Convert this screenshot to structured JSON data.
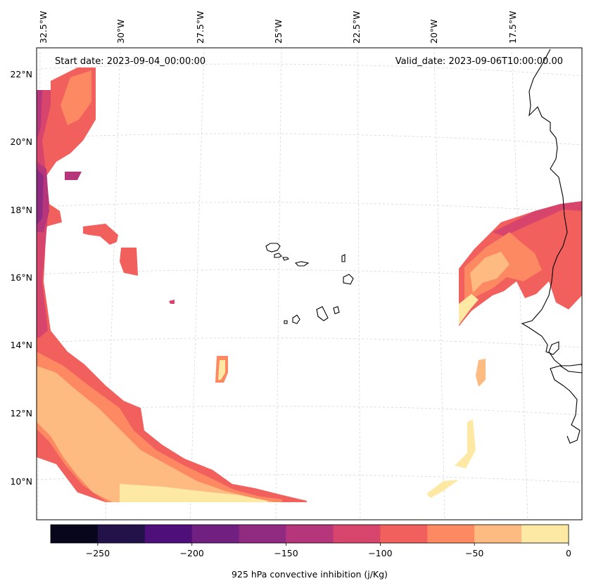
{
  "map": {
    "start_label": "Start date: 2023-09-04_00:00:00",
    "valid_label": "Valid_date: 2023-09-06T10:00:00.00",
    "lon_labels": [
      "32.5°W",
      "30°W",
      "27.5°W",
      "25°W",
      "22.5°W",
      "20°W",
      "17.5°W"
    ],
    "lat_labels": [
      "22°N",
      "20°N",
      "18°N",
      "16°N",
      "14°N",
      "12°N",
      "10°N"
    ],
    "extent_lon": [
      -32.5,
      -16.0
    ],
    "extent_lat": [
      8.9,
      22.8
    ]
  },
  "colorbar": {
    "label": "925 hPa convective inhibition (j/Kg)",
    "ticks": [
      "−250",
      "−200",
      "−150",
      "−100",
      "−50",
      "0"
    ],
    "levels": [
      -275,
      -250,
      -225,
      -200,
      -175,
      -150,
      -125,
      -100,
      -75,
      -50,
      -25,
      0
    ],
    "colors": [
      "#07061c",
      "#221249",
      "#4f0f7b",
      "#711f81",
      "#912b81",
      "#b5367a",
      "#d8456c",
      "#f1605d",
      "#fc8961",
      "#febb81",
      "#fde8a4"
    ]
  }
}
